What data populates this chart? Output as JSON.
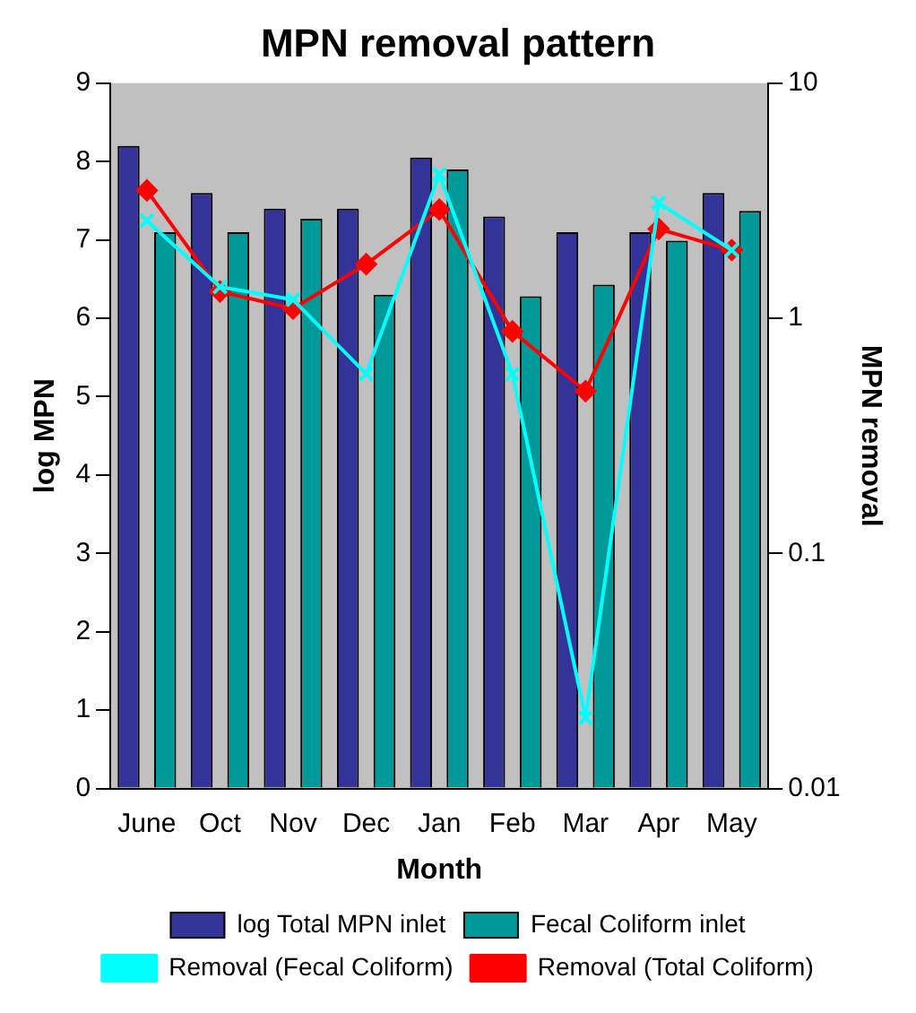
{
  "chart_data": {
    "type": "bar",
    "title": "MPN removal pattern",
    "xlabel": "Month",
    "ylabel": "log MPN",
    "y2label": "MPN removal",
    "categories": [
      "June",
      "Oct",
      "Nov",
      "Dec",
      "Jan",
      "Feb",
      "Mar",
      "Apr",
      "May"
    ],
    "series": [
      {
        "name": "log Total MPN inlet",
        "color": "#333399",
        "values": [
          8.2,
          7.6,
          7.4,
          7.4,
          8.05,
          7.3,
          7.1,
          7.1,
          7.6
        ]
      },
      {
        "name": "Fecal Coliform inlet",
        "color": "#009999",
        "values": [
          7.1,
          7.1,
          7.27,
          6.3,
          7.9,
          6.28,
          6.43,
          6.99,
          7.37
        ]
      },
      {
        "name": "Removal (Fecal Coliform)",
        "type": "line",
        "axis": "y2",
        "marker": "cross",
        "color": "#00ffff",
        "values": [
          2.6,
          1.36,
          1.2,
          0.58,
          4.1,
          0.58,
          0.02,
          3.1,
          1.95
        ]
      },
      {
        "name": "Removal (Total Coliform)",
        "type": "line",
        "axis": "y2",
        "marker": "diamond",
        "color": "#ff0000",
        "values": [
          3.5,
          1.3,
          1.1,
          1.7,
          2.9,
          0.88,
          0.49,
          2.4,
          1.95
        ]
      }
    ],
    "ylim": [
      0,
      9
    ],
    "yticks": [
      0,
      1,
      2,
      3,
      4,
      5,
      6,
      7,
      8,
      9
    ],
    "log": "y2",
    "y2lim": [
      0.01,
      10
    ],
    "y2ticks": [
      0.01,
      0.1,
      1,
      10
    ],
    "grid": false,
    "legend": "bottom"
  }
}
